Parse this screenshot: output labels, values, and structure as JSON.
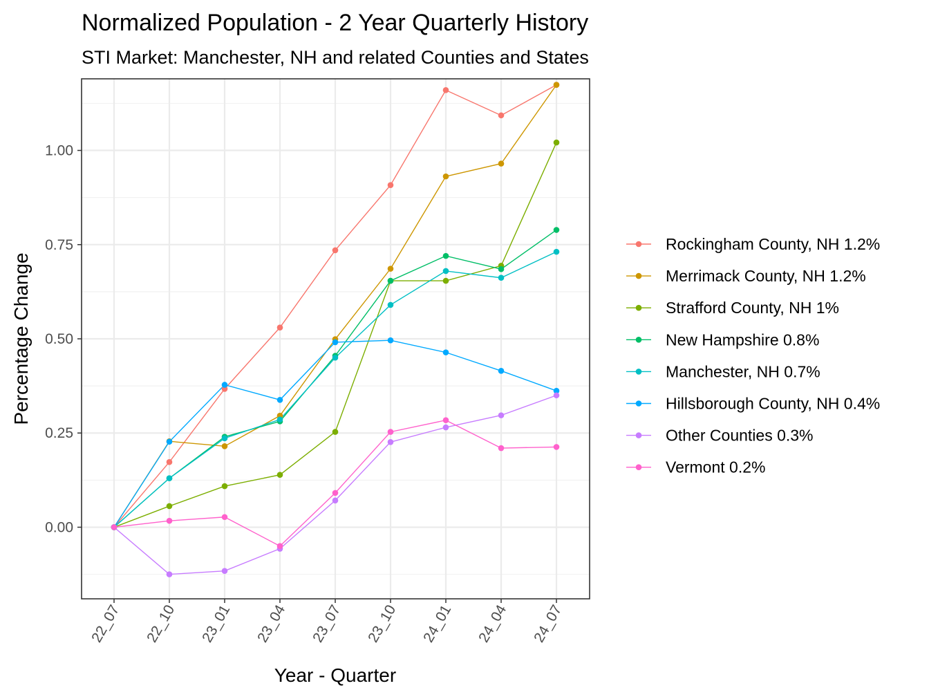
{
  "chart_data": {
    "type": "line",
    "title": "Normalized Population - 2 Year Quarterly History",
    "subtitle": "STI Market: Manchester, NH and related Counties and States",
    "xlabel": "Year - Quarter",
    "ylabel": "Percentage Change",
    "categories": [
      "22_07",
      "22_10",
      "23_01",
      "23_04",
      "23_07",
      "23_10",
      "24_01",
      "24_04",
      "24_07"
    ],
    "ylim": [
      -0.19,
      1.19
    ],
    "yticks": [
      0.0,
      0.25,
      0.5,
      0.75,
      1.0
    ],
    "ytick_labels": [
      "0.00",
      "0.25",
      "0.50",
      "0.75",
      "1.00"
    ],
    "grid": true,
    "legend_position": "right",
    "series": [
      {
        "name": "Rockingham County, NH 1.2%",
        "color": "#F8766D",
        "values": [
          0.0,
          0.173,
          0.367,
          0.53,
          0.735,
          0.908,
          1.16,
          1.093,
          1.174
        ]
      },
      {
        "name": "Merrimack County, NH 1.2%",
        "color": "#CD9600",
        "values": [
          0.0,
          0.228,
          0.215,
          0.296,
          0.499,
          0.686,
          0.931,
          0.965,
          1.174
        ]
      },
      {
        "name": "Strafford County, NH 1%",
        "color": "#7CAE00",
        "values": [
          0.0,
          0.056,
          0.109,
          0.139,
          0.253,
          0.654,
          0.654,
          0.694,
          1.021
        ]
      },
      {
        "name": "New Hampshire 0.8%",
        "color": "#00BE67",
        "values": [
          0.0,
          0.13,
          0.24,
          0.281,
          0.455,
          0.654,
          0.72,
          0.685,
          0.789
        ]
      },
      {
        "name": "Manchester, NH 0.7%",
        "color": "#00BFC4",
        "values": [
          0.0,
          0.13,
          0.236,
          0.286,
          0.45,
          0.59,
          0.68,
          0.662,
          0.731
        ]
      },
      {
        "name": "Hillsborough County, NH 0.4%",
        "color": "#00A9FF",
        "values": [
          0.0,
          0.227,
          0.378,
          0.338,
          0.491,
          0.496,
          0.464,
          0.415,
          0.362
        ]
      },
      {
        "name": "Other Counties 0.3%",
        "color": "#C77CFF",
        "values": [
          0.0,
          -0.125,
          -0.116,
          -0.057,
          0.071,
          0.226,
          0.265,
          0.297,
          0.35
        ]
      },
      {
        "name": "Vermont 0.2%",
        "color": "#FF61CC",
        "values": [
          0.0,
          0.017,
          0.027,
          -0.05,
          0.091,
          0.253,
          0.284,
          0.21,
          0.213
        ]
      }
    ]
  }
}
